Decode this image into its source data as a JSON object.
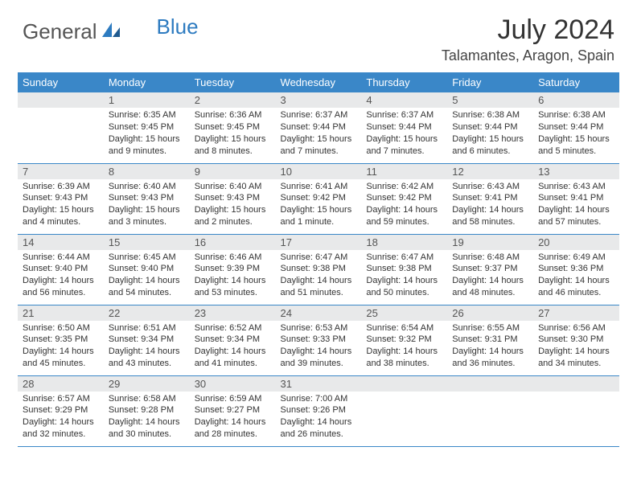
{
  "brand": {
    "part1": "General",
    "part2": "Blue"
  },
  "title": "July 2024",
  "location": "Talamantes, Aragon, Spain",
  "colors": {
    "header_bg": "#3a87c8",
    "header_text": "#ffffff",
    "daynum_bg": "#e8e9ea",
    "border": "#3a87c8",
    "logo_blue": "#2d7bc0"
  },
  "weekdays": [
    "Sunday",
    "Monday",
    "Tuesday",
    "Wednesday",
    "Thursday",
    "Friday",
    "Saturday"
  ],
  "weeks": [
    [
      null,
      {
        "n": "1",
        "sr": "6:35 AM",
        "ss": "9:45 PM",
        "dl": "15 hours and 9 minutes."
      },
      {
        "n": "2",
        "sr": "6:36 AM",
        "ss": "9:45 PM",
        "dl": "15 hours and 8 minutes."
      },
      {
        "n": "3",
        "sr": "6:37 AM",
        "ss": "9:44 PM",
        "dl": "15 hours and 7 minutes."
      },
      {
        "n": "4",
        "sr": "6:37 AM",
        "ss": "9:44 PM",
        "dl": "15 hours and 7 minutes."
      },
      {
        "n": "5",
        "sr": "6:38 AM",
        "ss": "9:44 PM",
        "dl": "15 hours and 6 minutes."
      },
      {
        "n": "6",
        "sr": "6:38 AM",
        "ss": "9:44 PM",
        "dl": "15 hours and 5 minutes."
      }
    ],
    [
      {
        "n": "7",
        "sr": "6:39 AM",
        "ss": "9:43 PM",
        "dl": "15 hours and 4 minutes."
      },
      {
        "n": "8",
        "sr": "6:40 AM",
        "ss": "9:43 PM",
        "dl": "15 hours and 3 minutes."
      },
      {
        "n": "9",
        "sr": "6:40 AM",
        "ss": "9:43 PM",
        "dl": "15 hours and 2 minutes."
      },
      {
        "n": "10",
        "sr": "6:41 AM",
        "ss": "9:42 PM",
        "dl": "15 hours and 1 minute."
      },
      {
        "n": "11",
        "sr": "6:42 AM",
        "ss": "9:42 PM",
        "dl": "14 hours and 59 minutes."
      },
      {
        "n": "12",
        "sr": "6:43 AM",
        "ss": "9:41 PM",
        "dl": "14 hours and 58 minutes."
      },
      {
        "n": "13",
        "sr": "6:43 AM",
        "ss": "9:41 PM",
        "dl": "14 hours and 57 minutes."
      }
    ],
    [
      {
        "n": "14",
        "sr": "6:44 AM",
        "ss": "9:40 PM",
        "dl": "14 hours and 56 minutes."
      },
      {
        "n": "15",
        "sr": "6:45 AM",
        "ss": "9:40 PM",
        "dl": "14 hours and 54 minutes."
      },
      {
        "n": "16",
        "sr": "6:46 AM",
        "ss": "9:39 PM",
        "dl": "14 hours and 53 minutes."
      },
      {
        "n": "17",
        "sr": "6:47 AM",
        "ss": "9:38 PM",
        "dl": "14 hours and 51 minutes."
      },
      {
        "n": "18",
        "sr": "6:47 AM",
        "ss": "9:38 PM",
        "dl": "14 hours and 50 minutes."
      },
      {
        "n": "19",
        "sr": "6:48 AM",
        "ss": "9:37 PM",
        "dl": "14 hours and 48 minutes."
      },
      {
        "n": "20",
        "sr": "6:49 AM",
        "ss": "9:36 PM",
        "dl": "14 hours and 46 minutes."
      }
    ],
    [
      {
        "n": "21",
        "sr": "6:50 AM",
        "ss": "9:35 PM",
        "dl": "14 hours and 45 minutes."
      },
      {
        "n": "22",
        "sr": "6:51 AM",
        "ss": "9:34 PM",
        "dl": "14 hours and 43 minutes."
      },
      {
        "n": "23",
        "sr": "6:52 AM",
        "ss": "9:34 PM",
        "dl": "14 hours and 41 minutes."
      },
      {
        "n": "24",
        "sr": "6:53 AM",
        "ss": "9:33 PM",
        "dl": "14 hours and 39 minutes."
      },
      {
        "n": "25",
        "sr": "6:54 AM",
        "ss": "9:32 PM",
        "dl": "14 hours and 38 minutes."
      },
      {
        "n": "26",
        "sr": "6:55 AM",
        "ss": "9:31 PM",
        "dl": "14 hours and 36 minutes."
      },
      {
        "n": "27",
        "sr": "6:56 AM",
        "ss": "9:30 PM",
        "dl": "14 hours and 34 minutes."
      }
    ],
    [
      {
        "n": "28",
        "sr": "6:57 AM",
        "ss": "9:29 PM",
        "dl": "14 hours and 32 minutes."
      },
      {
        "n": "29",
        "sr": "6:58 AM",
        "ss": "9:28 PM",
        "dl": "14 hours and 30 minutes."
      },
      {
        "n": "30",
        "sr": "6:59 AM",
        "ss": "9:27 PM",
        "dl": "14 hours and 28 minutes."
      },
      {
        "n": "31",
        "sr": "7:00 AM",
        "ss": "9:26 PM",
        "dl": "14 hours and 26 minutes."
      },
      null,
      null,
      null
    ]
  ],
  "labels": {
    "sunrise": "Sunrise:",
    "sunset": "Sunset:",
    "daylight": "Daylight:"
  }
}
